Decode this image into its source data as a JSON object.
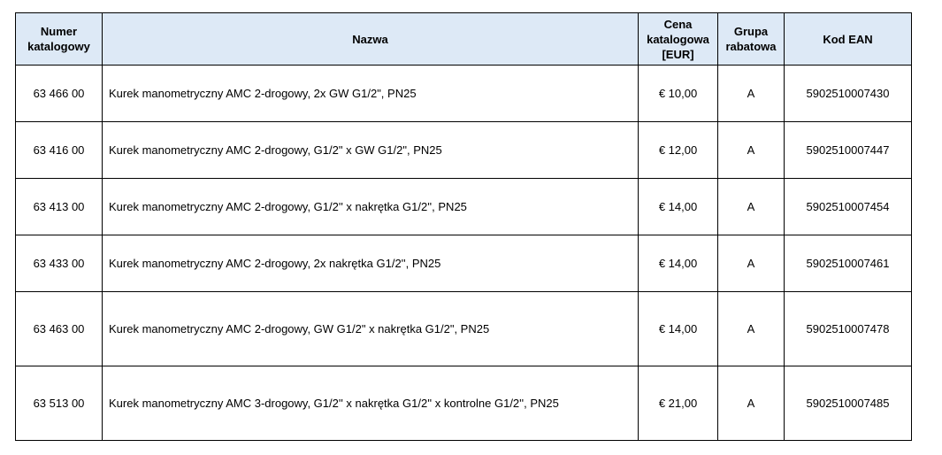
{
  "table": {
    "header": [
      "Numer katalogowy",
      "Nazwa",
      "Cena katalogowa [EUR]",
      "Grupa rabatowa",
      "Kod EAN"
    ],
    "rows": [
      [
        "63 466 00",
        "Kurek manometryczny AMC 2-drogowy, 2x GW G1/2\", PN25",
        "€ 10,00",
        "A",
        "5902510007430"
      ],
      [
        "63 416 00",
        "Kurek manometryczny AMC 2-drogowy, G1/2\" x GW G1/2\", PN25",
        "€ 12,00",
        "A",
        "5902510007447"
      ],
      [
        "63 413 00",
        "Kurek manometryczny AMC 2-drogowy, G1/2'' x nakrętka G1/2'', PN25",
        "€ 14,00",
        "A",
        "5902510007454"
      ],
      [
        "63 433 00",
        "Kurek manometryczny AMC 2-drogowy, 2x nakrętka G1/2'', PN25",
        "€ 14,00",
        "A",
        "5902510007461"
      ],
      [
        "63 463 00",
        "Kurek manometryczny AMC 2-drogowy, GW G1/2\" x nakrętka G1/2\", PN25",
        "€ 14,00",
        "A",
        "5902510007478"
      ],
      [
        "63 513 00",
        "Kurek manometryczny AMC 3-drogowy, G1/2'' x nakrętka G1/2'' x kontrolne G1/2'', PN25",
        "€ 21,00",
        "A",
        "5902510007485"
      ]
    ]
  }
}
